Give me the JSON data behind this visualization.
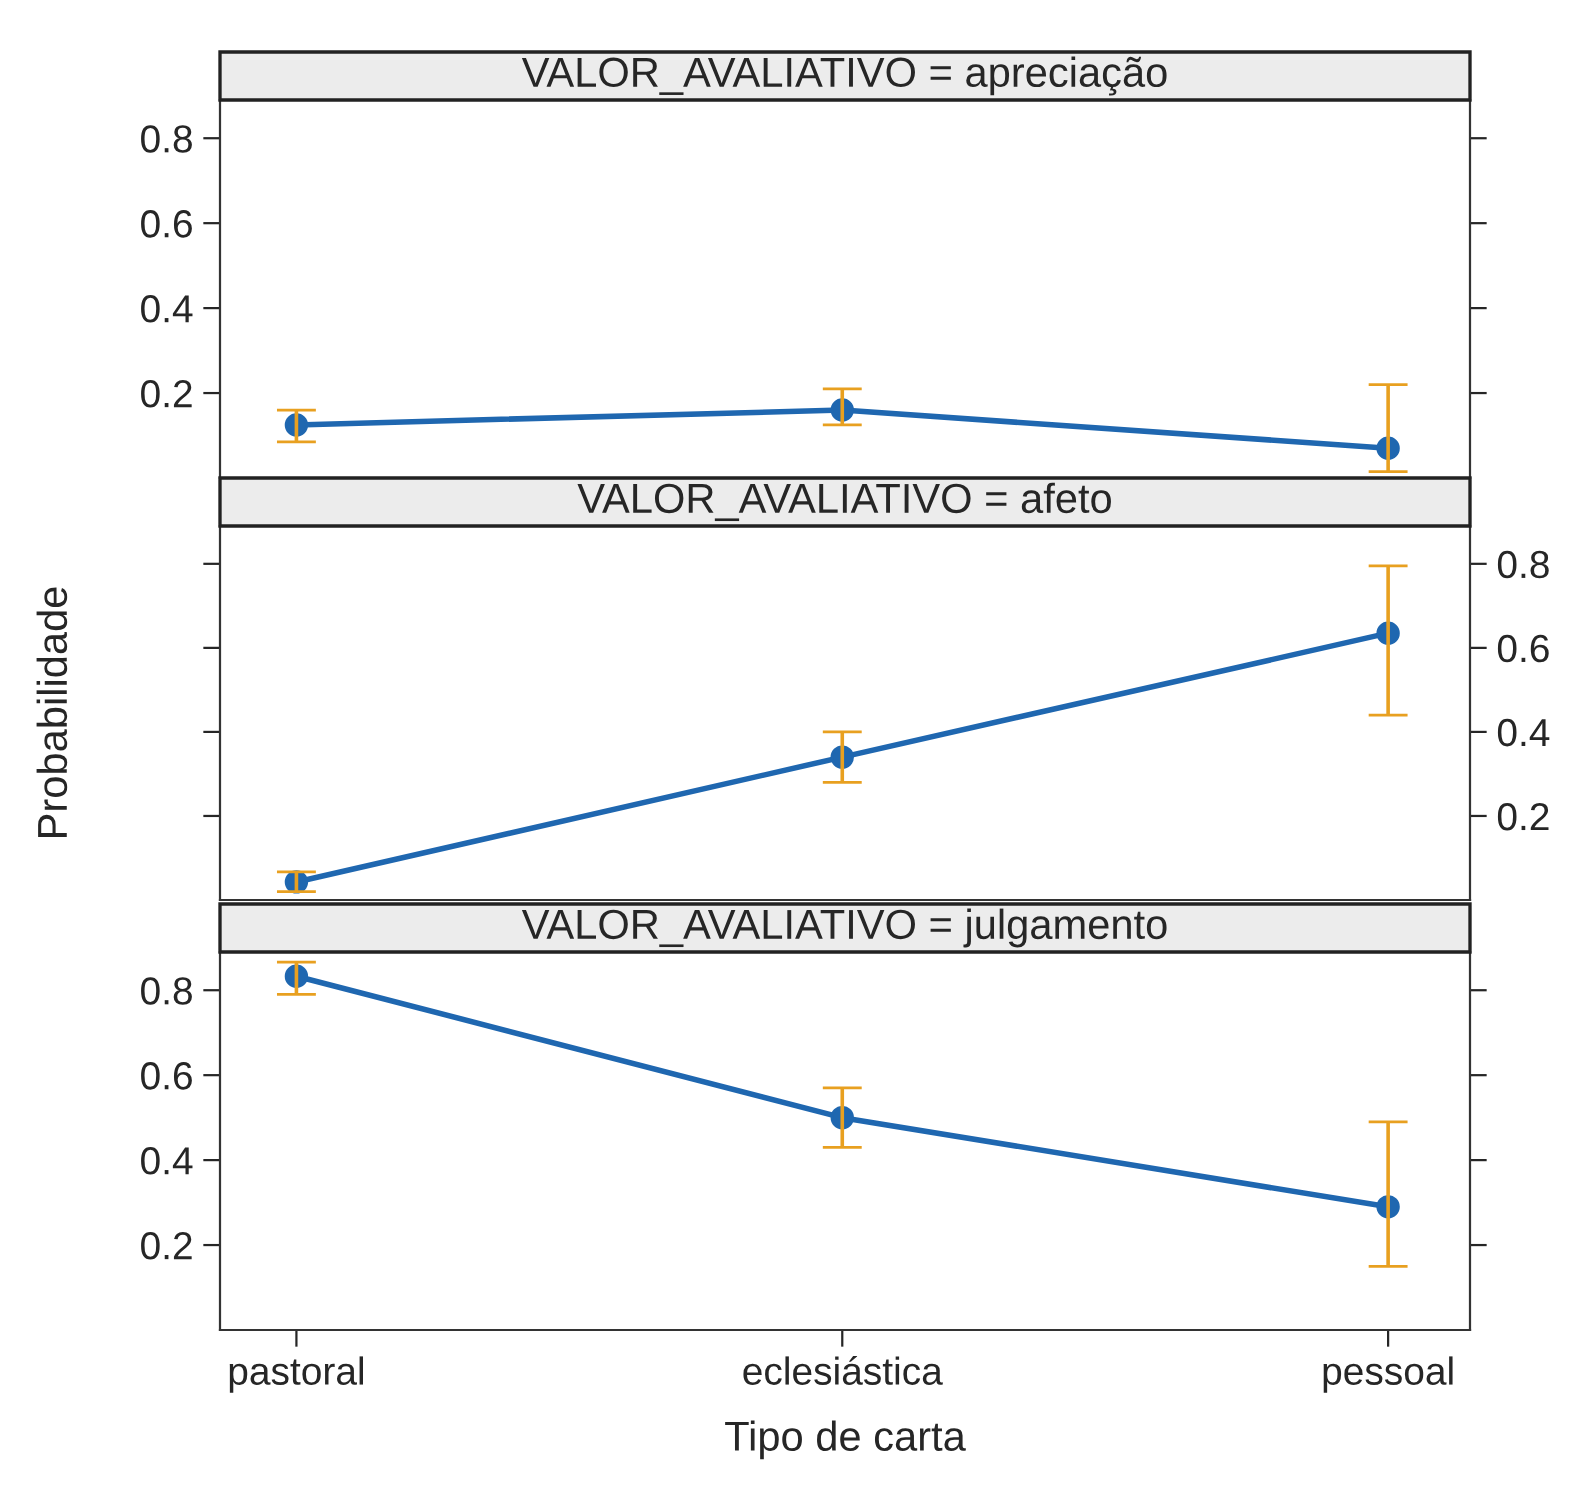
{
  "chart_data": [
    {
      "type": "line",
      "title": "VALOR_AVALIATIVO = apreciação",
      "categories": [
        null,
        null,
        null
      ],
      "ylim": [
        0,
        0.89
      ],
      "yticks": [
        0.2,
        0.4,
        0.6,
        0.8
      ],
      "tick_labels": "y",
      "marker": "circle",
      "grid": false,
      "series": [
        {
          "color": "#1f67b0",
          "values": [
            0.125,
            0.16,
            0.07
          ],
          "errors": [
            [
              0.085,
              0.16
            ],
            [
              0.125,
              0.21
            ],
            [
              0.015,
              0.22
            ]
          ]
        }
      ]
    },
    {
      "type": "line",
      "title": "VALOR_AVALIATIVO = afeto",
      "ylabel": "Probabilidade",
      "categories": [
        null,
        null,
        null
      ],
      "ylim": [
        0,
        0.89
      ],
      "yticks": [
        0.2,
        0.4,
        0.6,
        0.8
      ],
      "tick_labels": "y",
      "marker": "circle",
      "grid": false,
      "series": [
        {
          "color": "#1f67b0",
          "values": [
            0.043,
            0.34,
            0.635
          ],
          "errors": [
            [
              0.02,
              0.067
            ],
            [
              0.28,
              0.4
            ],
            [
              0.44,
              0.795
            ]
          ]
        }
      ]
    },
    {
      "type": "line",
      "title": "VALOR_AVALIATIVO = julgamento",
      "xlabel": "Tipo de carta",
      "categories": [
        "pastoral",
        "eclesiástica",
        "pessoal"
      ],
      "ylim": [
        0,
        0.89
      ],
      "yticks": [
        0.2,
        0.4,
        0.6,
        0.8
      ],
      "marker": "circle",
      "grid": false,
      "series": [
        {
          "color": "#1f67b0",
          "values": [
            0.833,
            0.5,
            0.29
          ],
          "errors": [
            [
              0.79,
              0.866
            ],
            [
              0.43,
              0.57
            ],
            [
              0.15,
              0.49
            ]
          ]
        }
      ]
    }
  ]
}
